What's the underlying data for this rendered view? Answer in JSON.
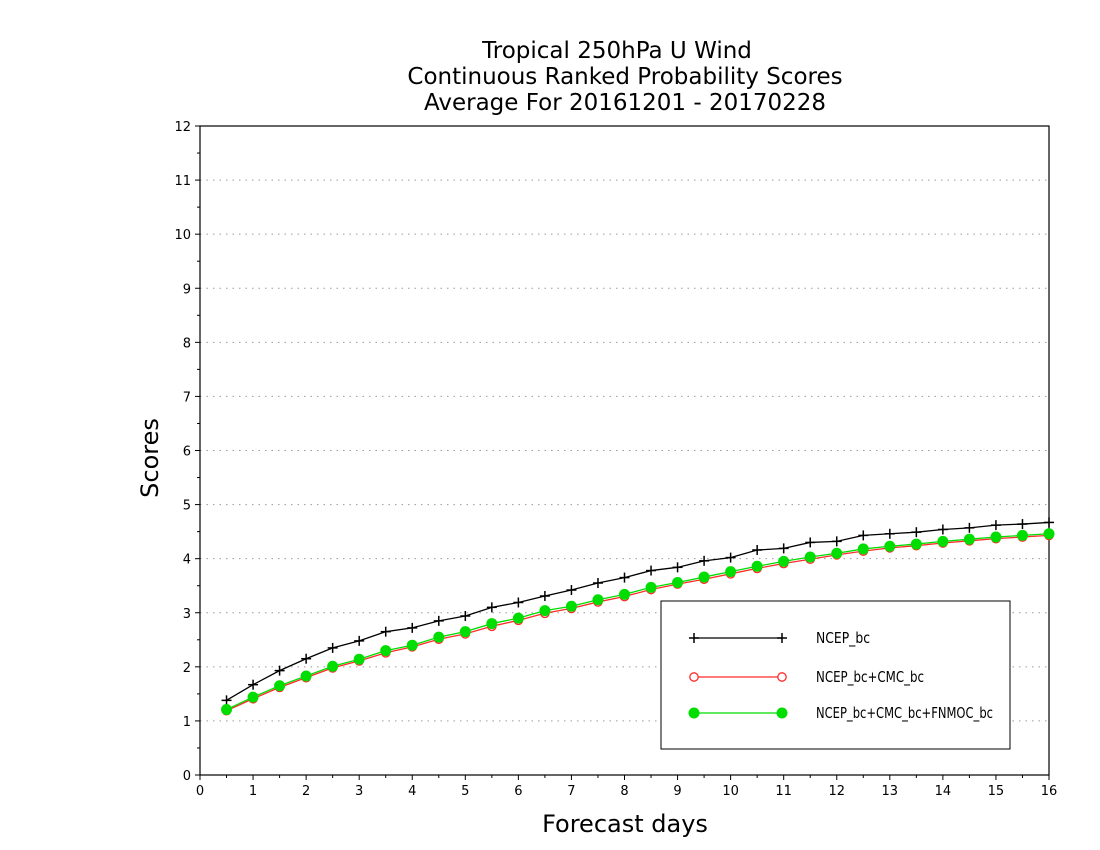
{
  "chart_data": {
    "type": "line",
    "title": [
      "Tropical 250hPa U Wind",
      "Continuous Ranked Probability Scores",
      "Average For 20161201 - 20170228"
    ],
    "xlabel": "Forecast days",
    "ylabel": "Scores",
    "xlim": [
      0,
      16
    ],
    "ylim": [
      0,
      12
    ],
    "xticks": [
      "0",
      "1",
      "2",
      "3",
      "4",
      "5",
      "6",
      "7",
      "8",
      "9",
      "10",
      "11",
      "12",
      "13",
      "14",
      "15",
      "16"
    ],
    "yticks": [
      "0",
      "1",
      "2",
      "3",
      "4",
      "5",
      "6",
      "7",
      "8",
      "9",
      "10",
      "11",
      "12"
    ],
    "grid": "horizontal-dotted",
    "legend_position": "bottom-right",
    "x": [
      0.5,
      1,
      1.5,
      2,
      2.5,
      3,
      3.5,
      4,
      4.5,
      5,
      5.5,
      6,
      6.5,
      7,
      7.5,
      8,
      8.5,
      9,
      9.5,
      10,
      10.5,
      11,
      11.5,
      12,
      12.5,
      13,
      13.5,
      14,
      14.5,
      15,
      15.5,
      16
    ],
    "series": [
      {
        "name": "NCEP_bc",
        "color": "#000000",
        "marker": "plus",
        "values": [
          1.38,
          1.67,
          1.93,
          2.15,
          2.35,
          2.48,
          2.65,
          2.72,
          2.85,
          2.94,
          3.1,
          3.19,
          3.31,
          3.42,
          3.55,
          3.65,
          3.78,
          3.84,
          3.96,
          4.02,
          4.16,
          4.19,
          4.3,
          4.32,
          4.43,
          4.46,
          4.49,
          4.54,
          4.57,
          4.62,
          4.64,
          4.67
        ]
      },
      {
        "name": "NCEP_bc+CMC_bc",
        "color": "#ff2a2a",
        "marker": "open-circle",
        "values": [
          1.19,
          1.41,
          1.62,
          1.8,
          1.98,
          2.11,
          2.26,
          2.37,
          2.51,
          2.61,
          2.75,
          2.86,
          2.99,
          3.08,
          3.2,
          3.3,
          3.43,
          3.53,
          3.62,
          3.72,
          3.82,
          3.91,
          3.99,
          4.07,
          4.14,
          4.2,
          4.24,
          4.29,
          4.33,
          4.37,
          4.4,
          4.43
        ]
      },
      {
        "name": "NCEP_bc+CMC_bc+FNMOC_bc",
        "color": "#00dd00",
        "marker": "filled-circle",
        "values": [
          1.21,
          1.44,
          1.65,
          1.83,
          2.01,
          2.14,
          2.3,
          2.4,
          2.55,
          2.65,
          2.8,
          2.9,
          3.04,
          3.12,
          3.24,
          3.34,
          3.47,
          3.56,
          3.66,
          3.76,
          3.86,
          3.95,
          4.03,
          4.1,
          4.18,
          4.23,
          4.27,
          4.32,
          4.36,
          4.4,
          4.43,
          4.46
        ]
      }
    ]
  }
}
